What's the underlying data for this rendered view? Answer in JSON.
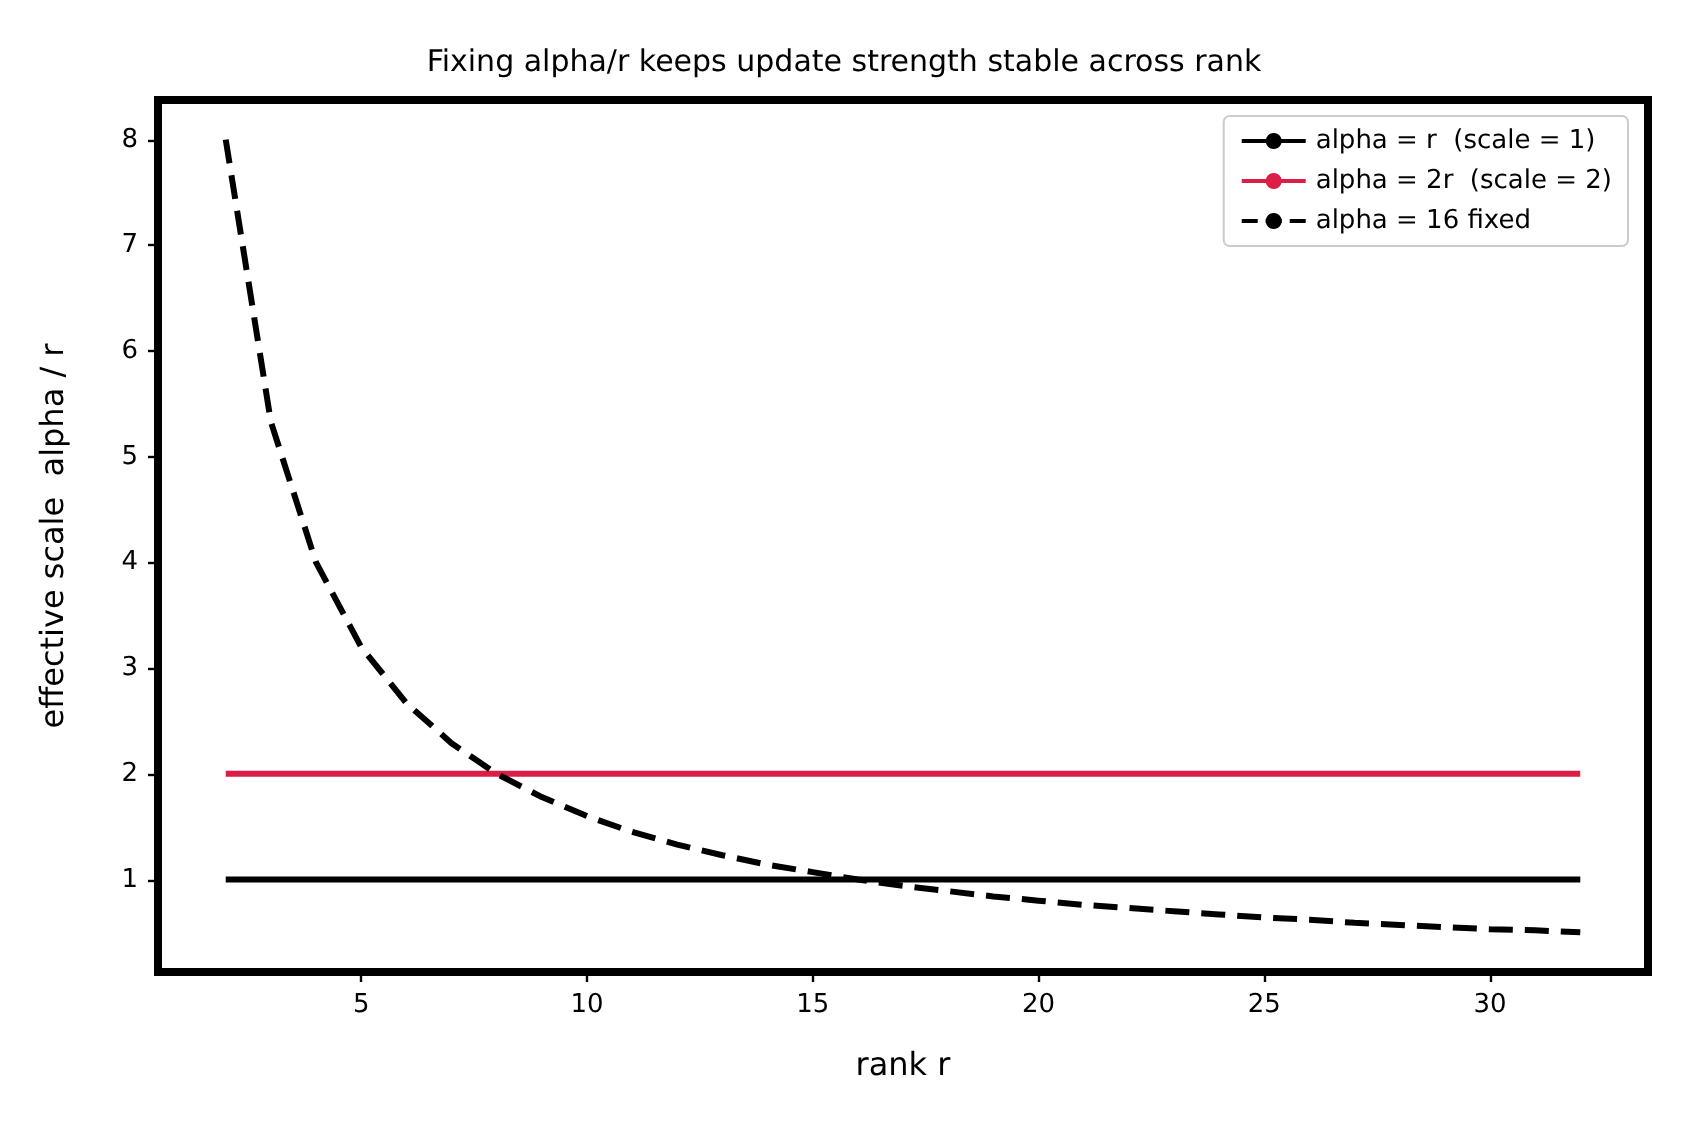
{
  "chart_data": {
    "type": "line",
    "title": "Fixing alpha/r keeps update strength stable across rank",
    "xlabel": "rank r",
    "ylabel": "effective scale  alpha / r",
    "series": [
      {
        "name": "alpha = r  (scale = 1)",
        "color": "#000000",
        "x": [
          2,
          32
        ],
        "values": [
          1,
          1
        ]
      },
      {
        "name": "alpha = 2r  (scale = 2)",
        "color": "#dc1e46",
        "x": [
          2,
          32
        ],
        "values": [
          2,
          2
        ]
      },
      {
        "name": "alpha = 16 fixed",
        "color": "#000000",
        "line_style": "dashed",
        "x": [
          2,
          3,
          4,
          5,
          6,
          7,
          8,
          9,
          10,
          11,
          12,
          13,
          14,
          15,
          16,
          17,
          18,
          19,
          20,
          21,
          22,
          23,
          24,
          25,
          26,
          27,
          28,
          29,
          30,
          31,
          32
        ],
        "values": [
          8,
          5.33,
          4,
          3.2,
          2.67,
          2.29,
          2,
          1.78,
          1.6,
          1.45,
          1.33,
          1.23,
          1.14,
          1.07,
          1,
          0.94,
          0.89,
          0.84,
          0.8,
          0.76,
          0.73,
          0.7,
          0.67,
          0.64,
          0.62,
          0.59,
          0.57,
          0.55,
          0.53,
          0.52,
          0.5
        ]
      }
    ],
    "xlim": [
      0.5,
      33.5
    ],
    "xticks": [
      5,
      10,
      15,
      20,
      25,
      30
    ],
    "ylim": [
      0.125,
      8.375
    ],
    "yticks": [
      1,
      2,
      3,
      4,
      5,
      6,
      7,
      8
    ],
    "grid": false,
    "legend": "top right",
    "marker": "none",
    "line_style": "solid"
  }
}
